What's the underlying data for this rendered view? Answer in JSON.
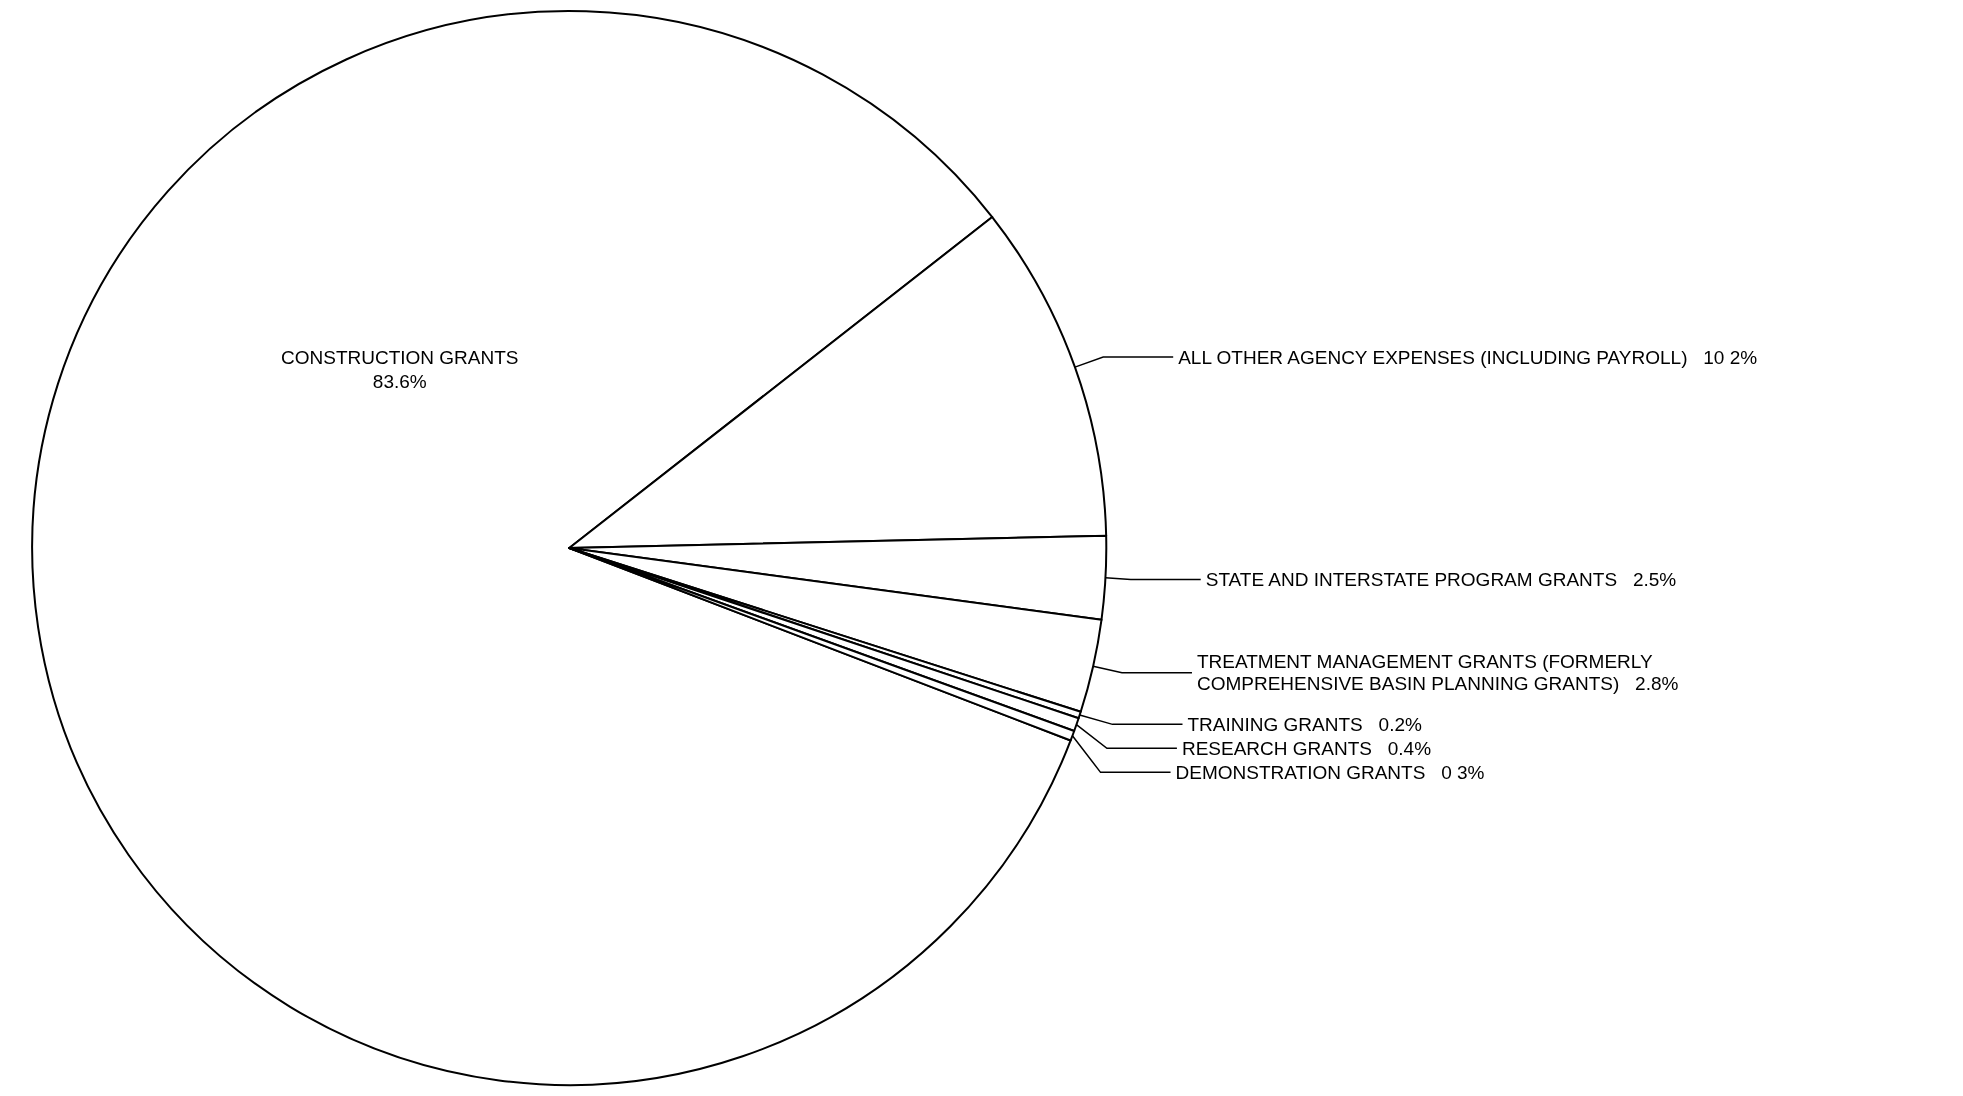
{
  "chart_data": {
    "type": "pie",
    "categories": [
      "CONSTRUCTION GRANTS",
      "ALL OTHER AGENCY EXPENSES (INCLUDING PAYROLL)",
      "STATE AND INTERSTATE PROGRAM GRANTS",
      "TREATMENT MANAGEMENT GRANTS (FORMERLY COMPREHENSIVE BASIN PLANNING GRANTS)",
      "TRAINING GRANTS",
      "RESEARCH GRANTS",
      "DEMONSTRATION GRANTS"
    ],
    "values": [
      83.6,
      10.2,
      2.5,
      2.8,
      0.2,
      0.4,
      0.3
    ],
    "value_labels": [
      "83.6%",
      "10 2%",
      "2.5%",
      "2.8%",
      "0.2%",
      "0.4%",
      "0 3%"
    ],
    "colors": [
      "#ffffff",
      "#ffffff",
      "#ffffff",
      "#ffffff",
      "#ffffff",
      "#ffffff",
      "#ffffff"
    ]
  }
}
